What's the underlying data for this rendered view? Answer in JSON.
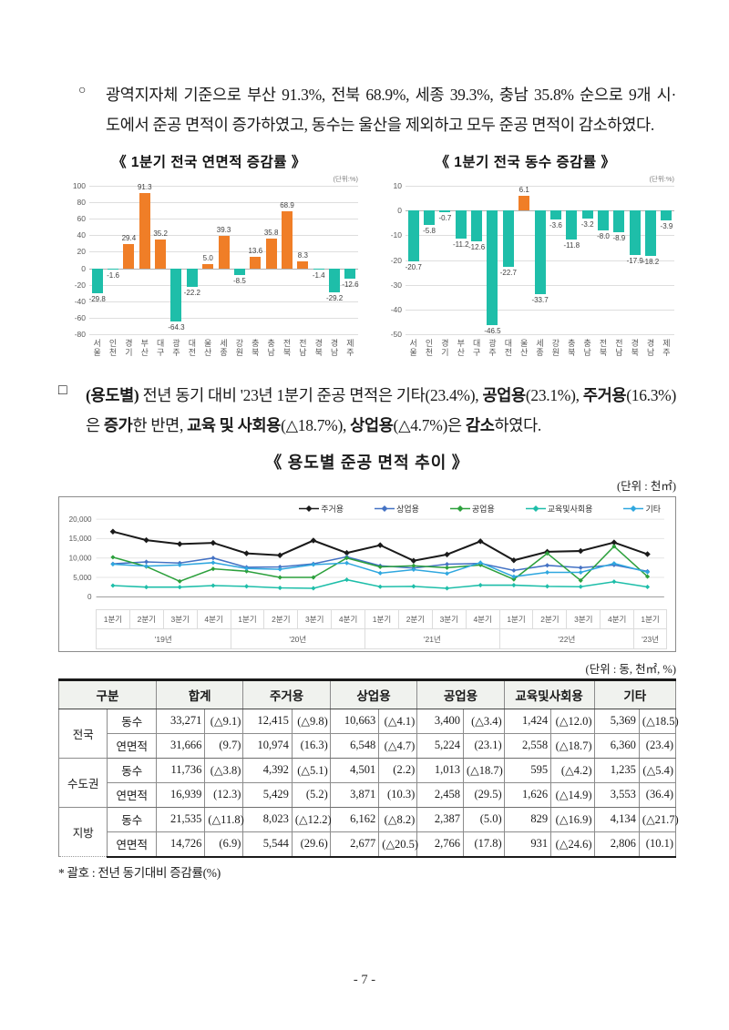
{
  "page": {
    "bullet1": {
      "marker": "○",
      "text": "광역지자체 기준으로 부산 91.3%, 전북 68.9%, 세종 39.3%, 충남 35.8% 순으로 9개 시·도에서 준공 면적이 증가하였고, 동수는 울산을 제외하고 모두 준공 면적이 감소하였다."
    },
    "para2": {
      "marker": "□",
      "segments": [
        {
          "text": "(용도별)",
          "bold": true
        },
        {
          "text": " 전년 동기 대비 '23년 1분기 준공 면적은 기타(23.4%), ",
          "bold": false
        },
        {
          "text": "공업용",
          "bold": true
        },
        {
          "text": "(23.1%), ",
          "bold": false
        },
        {
          "text": "주거용",
          "bold": true
        },
        {
          "text": "(16.3%)은 ",
          "bold": false
        },
        {
          "text": "증가",
          "bold": true
        },
        {
          "text": "한 반면, ",
          "bold": false
        },
        {
          "text": "교육 및 사회용",
          "bold": true
        },
        {
          "text": "(△18.7%), ",
          "bold": false
        },
        {
          "text": "상업용",
          "bold": true
        },
        {
          "text": "(△4.7%)은 ",
          "bold": false
        },
        {
          "text": "감소",
          "bold": true
        },
        {
          "text": "하였다.",
          "bold": false
        }
      ]
    }
  },
  "chart_data": [
    {
      "type": "bar",
      "title": "《 1분기 전국 연면적 증감률 》",
      "unit_label": "(단위:%)",
      "categories": [
        "서울",
        "인천",
        "경기",
        "부산",
        "대구",
        "광주",
        "대전",
        "울산",
        "세종",
        "강원",
        "충북",
        "충남",
        "전북",
        "전남",
        "경북",
        "경남",
        "제주"
      ],
      "values": [
        -29.8,
        -1.6,
        29.4,
        91.3,
        35.2,
        -64.3,
        -22.2,
        5.0,
        39.3,
        -8.5,
        13.6,
        35.8,
        68.9,
        8.3,
        -1.4,
        -29.2,
        -12.6
      ],
      "labels": [
        "-29.8",
        "-1.6",
        "29.4",
        "91.3",
        "35.2",
        "-64.3",
        "-22.2",
        "5.0",
        "39.3",
        "-8.5",
        "13.6",
        "35.8",
        "68.9",
        "8.3",
        "-1.4",
        "-29.2",
        "-12.6"
      ],
      "ylim": [
        -80,
        100
      ],
      "ytick_step": 20,
      "colors": {
        "positive": "#F07E27",
        "negative": "#1EBEA9"
      }
    },
    {
      "type": "bar",
      "title": "《 1분기 전국 동수 증감률 》",
      "unit_label": "(단위:%)",
      "categories": [
        "서울",
        "인천",
        "경기",
        "부산",
        "대구",
        "광주",
        "대전",
        "울산",
        "세종",
        "강원",
        "충북",
        "충남",
        "전북",
        "전남",
        "경북",
        "경남",
        "제주"
      ],
      "values": [
        -20.7,
        -5.8,
        -0.7,
        -11.2,
        -12.6,
        -46.5,
        -22.7,
        6.1,
        -33.7,
        -3.6,
        -11.8,
        -3.2,
        -8.0,
        -8.9,
        -17.9,
        -18.2,
        -3.9
      ],
      "labels": [
        "-20.7",
        "-5.8",
        "-0.7",
        "-11.2",
        "-12.6",
        "-46.5",
        "-22.7",
        "6.1",
        "-33.7",
        "-3.6",
        "-11.8",
        "-3.2",
        "-8.0",
        "-8.9",
        "-17.9",
        "-18.2",
        "-3.9"
      ],
      "ylim": [
        -50,
        10
      ],
      "ytick_step": 10,
      "colors": {
        "positive": "#F07E27",
        "negative": "#1EBEA9"
      }
    },
    {
      "type": "line",
      "title": "《 용도별 준공 면적 추이 》",
      "unit_label": "(단위 : 천㎡)",
      "x_quarters": [
        "1분기",
        "2분기",
        "3분기",
        "4분기",
        "1분기",
        "2분기",
        "3분기",
        "4분기",
        "1분기",
        "2분기",
        "3분기",
        "4분기",
        "1분기",
        "2분기",
        "3분기",
        "4분기",
        "1분기"
      ],
      "year_groups": [
        {
          "label": "'19년",
          "span": 4
        },
        {
          "label": "'20년",
          "span": 4
        },
        {
          "label": "'21년",
          "span": 4
        },
        {
          "label": "'22년",
          "span": 4
        },
        {
          "label": "'23년",
          "span": 1
        }
      ],
      "ylim": [
        0,
        20000
      ],
      "ytick_step": 5000,
      "series": [
        {
          "name": "주거용",
          "color": "#1a1a1a",
          "values": [
            16800,
            14600,
            13600,
            13900,
            11200,
            10700,
            14500,
            11300,
            13300,
            9300,
            10900,
            14300,
            9400,
            11600,
            11800,
            14000,
            10974
          ]
        },
        {
          "name": "상업용",
          "color": "#4472C4",
          "values": [
            8500,
            9000,
            8700,
            10000,
            7600,
            7700,
            8500,
            10300,
            8000,
            7400,
            8400,
            8600,
            6800,
            8100,
            7500,
            8200,
            6548
          ]
        },
        {
          "name": "공업용",
          "color": "#2CA03C",
          "values": [
            10200,
            7800,
            4000,
            7200,
            6600,
            5000,
            5000,
            10000,
            7700,
            8000,
            7500,
            8200,
            4500,
            11200,
            4200,
            13000,
            5224
          ]
        },
        {
          "name": "교육및사회용",
          "color": "#1EBEA9",
          "values": [
            2900,
            2500,
            2500,
            2900,
            2700,
            2300,
            2200,
            4400,
            2600,
            2700,
            2200,
            3000,
            3000,
            2700,
            2600,
            3900,
            2558
          ]
        },
        {
          "name": "기타",
          "color": "#2FA7DF",
          "values": [
            8400,
            7900,
            8200,
            8800,
            7300,
            7100,
            8300,
            8700,
            6100,
            7000,
            6000,
            8800,
            5200,
            6300,
            6300,
            8600,
            6360
          ]
        }
      ]
    }
  ],
  "table": {
    "unit_note": "(단위 : 동, 천㎡, %)",
    "corner_header": "구분",
    "group_headers": [
      "합계",
      "주거용",
      "상업용",
      "공업용",
      "교육및사회용",
      "기타"
    ],
    "groups": [
      {
        "region": "전국",
        "rows": [
          {
            "metric": "동수",
            "cells": [
              [
                "33,271",
                "(△9.1)"
              ],
              [
                "12,415",
                "(△9.8)"
              ],
              [
                "10,663",
                "(△4.1)"
              ],
              [
                "3,400",
                "(△3.4)"
              ],
              [
                "1,424",
                "(△12.0)"
              ],
              [
                "5,369",
                "(△18.5)"
              ]
            ]
          },
          {
            "metric": "연면적",
            "cells": [
              [
                "31,666",
                "(9.7)"
              ],
              [
                "10,974",
                "(16.3)"
              ],
              [
                "6,548",
                "(△4.7)"
              ],
              [
                "5,224",
                "(23.1)"
              ],
              [
                "2,558",
                "(△18.7)"
              ],
              [
                "6,360",
                "(23.4)"
              ]
            ]
          }
        ]
      },
      {
        "region": "수도권",
        "rows": [
          {
            "metric": "동수",
            "cells": [
              [
                "11,736",
                "(△3.8)"
              ],
              [
                "4,392",
                "(△5.1)"
              ],
              [
                "4,501",
                "(2.2)"
              ],
              [
                "1,013",
                "(△18.7)"
              ],
              [
                "595",
                "(△4.2)"
              ],
              [
                "1,235",
                "(△5.4)"
              ]
            ]
          },
          {
            "metric": "연면적",
            "cells": [
              [
                "16,939",
                "(12.3)"
              ],
              [
                "5,429",
                "(5.2)"
              ],
              [
                "3,871",
                "(10.3)"
              ],
              [
                "2,458",
                "(29.5)"
              ],
              [
                "1,626",
                "(△14.9)"
              ],
              [
                "3,553",
                "(36.4)"
              ]
            ]
          }
        ]
      },
      {
        "region": "지방",
        "rows": [
          {
            "metric": "동수",
            "cells": [
              [
                "21,535",
                "(△11.8)"
              ],
              [
                "8,023",
                "(△12.2)"
              ],
              [
                "6,162",
                "(△8.2)"
              ],
              [
                "2,387",
                "(5.0)"
              ],
              [
                "829",
                "(△16.9)"
              ],
              [
                "4,134",
                "(△21.7)"
              ]
            ]
          },
          {
            "metric": "연면적",
            "cells": [
              [
                "14,726",
                "(6.9)"
              ],
              [
                "5,544",
                "(29.6)"
              ],
              [
                "2,677",
                "(△20.5)"
              ],
              [
                "2,766",
                "(17.8)"
              ],
              [
                "931",
                "(△24.6)"
              ],
              [
                "2,806",
                "(10.1)"
              ]
            ]
          }
        ]
      }
    ],
    "footnote": "* 괄호 : 전년 동기대비 증감률(%)"
  },
  "footer": {
    "page_number": "- 7 -"
  }
}
